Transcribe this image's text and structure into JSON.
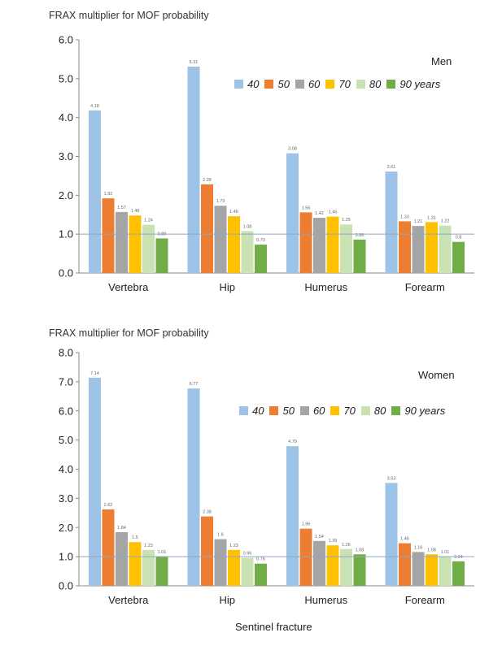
{
  "x_axis_title": "Sentinel fracture",
  "colors": {
    "series": [
      "#9dc3e6",
      "#ed7d31",
      "#a5a5a5",
      "#ffc000",
      "#c9e2b3",
      "#70ad47"
    ],
    "reference_line": "#8fa9c4",
    "axis": "#888888"
  },
  "chart_data": [
    {
      "type": "bar",
      "title": "FRAX multiplier for MOF probability",
      "panel_label": "Men",
      "categories": [
        "Vertebra",
        "Hip",
        "Humerus",
        "Forearm"
      ],
      "series": [
        {
          "name": "40",
          "values": [
            4.18,
            5.31,
            3.08,
            2.61
          ]
        },
        {
          "name": "50",
          "values": [
            1.92,
            2.28,
            1.56,
            1.33
          ]
        },
        {
          "name": "60",
          "values": [
            1.57,
            1.73,
            1.42,
            1.21
          ]
        },
        {
          "name": "70",
          "values": [
            1.48,
            1.46,
            1.45,
            1.31
          ]
        },
        {
          "name": "80",
          "values": [
            1.24,
            1.08,
            1.25,
            1.22
          ]
        },
        {
          "name": "90 years",
          "values": [
            0.89,
            0.73,
            0.86,
            0.8
          ]
        }
      ],
      "data_labels": [
        [
          "4.18",
          "5.31",
          "3.08",
          "2.61"
        ],
        [
          "1.92",
          "2.28",
          "1.56",
          "1.33"
        ],
        [
          "1.57",
          "1.73",
          "1.42",
          "1.21"
        ],
        [
          "1.48",
          "1.46",
          "1.45",
          "1.31"
        ],
        [
          "1.24",
          "1.08",
          "1.25",
          "1.22"
        ],
        [
          "0.89",
          "0.73",
          "0.86",
          "0.8"
        ]
      ],
      "yticks": [
        "0.0",
        "1.0",
        "2.0",
        "3.0",
        "4.0",
        "5.0",
        "6.0"
      ],
      "ylim": [
        0,
        6
      ],
      "reference_line": 1.0,
      "legend_position": "top-right"
    },
    {
      "type": "bar",
      "title": "FRAX multiplier for MOF probability",
      "panel_label": "Women",
      "categories": [
        "Vertebra",
        "Hip",
        "Humerus",
        "Forearm"
      ],
      "series": [
        {
          "name": "40",
          "values": [
            7.14,
            6.77,
            4.79,
            3.53
          ]
        },
        {
          "name": "50",
          "values": [
            2.62,
            2.38,
            1.96,
            1.46
          ]
        },
        {
          "name": "60",
          "values": [
            1.84,
            1.6,
            1.54,
            1.16
          ]
        },
        {
          "name": "70",
          "values": [
            1.5,
            1.23,
            1.39,
            1.08
          ]
        },
        {
          "name": "80",
          "values": [
            1.23,
            0.96,
            1.26,
            1.01
          ]
        },
        {
          "name": "90 years",
          "values": [
            1.01,
            0.76,
            1.08,
            0.84
          ]
        }
      ],
      "data_labels": [
        [
          "7.14",
          "6.77",
          "4.79",
          "3.53"
        ],
        [
          "2.62",
          "2.38",
          "1.96",
          "1.46"
        ],
        [
          "1.84",
          "1.6",
          "1.54",
          "1.16"
        ],
        [
          "1.5",
          "1.23",
          "1.39",
          "1.08"
        ],
        [
          "1.23",
          "0.96",
          "1.26",
          "1.01"
        ],
        [
          "1.01",
          "0.76",
          "1.08",
          "0.84"
        ]
      ],
      "yticks": [
        "0.0",
        "1.0",
        "2.0",
        "3.0",
        "4.0",
        "5.0",
        "6.0",
        "7.0",
        "8.0"
      ],
      "ylim": [
        0,
        8
      ],
      "reference_line": 1.0,
      "legend_position": "top-right"
    }
  ]
}
